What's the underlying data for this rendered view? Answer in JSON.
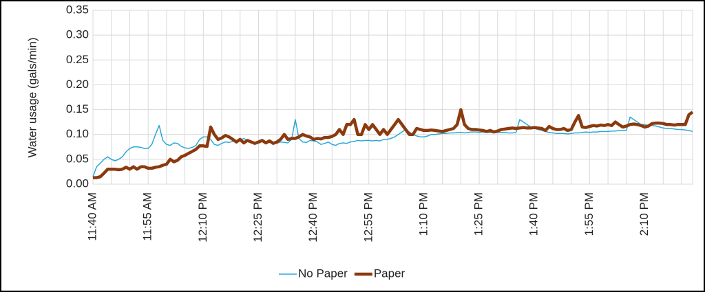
{
  "chart_data": {
    "type": "line",
    "ylabel": "Water usage (gals/min)",
    "categories": [
      "11:40 AM",
      null,
      null,
      null,
      null,
      null,
      null,
      null,
      null,
      null,
      null,
      null,
      null,
      null,
      null,
      "11:55 AM",
      null,
      null,
      null,
      null,
      null,
      null,
      null,
      null,
      null,
      null,
      null,
      null,
      null,
      null,
      "12:10 PM",
      null,
      null,
      null,
      null,
      null,
      null,
      null,
      null,
      null,
      null,
      null,
      null,
      null,
      null,
      "12:25 PM",
      null,
      null,
      null,
      null,
      null,
      null,
      null,
      null,
      null,
      null,
      null,
      null,
      null,
      null,
      "12:40 PM",
      null,
      null,
      null,
      null,
      null,
      null,
      null,
      null,
      null,
      null,
      null,
      null,
      null,
      null,
      "12:55 PM",
      null,
      null,
      null,
      null,
      null,
      null,
      null,
      null,
      null,
      null,
      null,
      null,
      null,
      null,
      "1:10 PM",
      null,
      null,
      null,
      null,
      null,
      null,
      null,
      null,
      null,
      null,
      null,
      null,
      null,
      null,
      "1:25 PM",
      null,
      null,
      null,
      null,
      null,
      null,
      null,
      null,
      null,
      null,
      null,
      null,
      null,
      null,
      "1:40 PM",
      null,
      null,
      null,
      null,
      null,
      null,
      null,
      null,
      null,
      null,
      null,
      null,
      null,
      null,
      "1:55 PM",
      null,
      null,
      null,
      null,
      null,
      null,
      null,
      null,
      null,
      null,
      null,
      null,
      null,
      null,
      "2:10 PM",
      null,
      null,
      null,
      null,
      null,
      null,
      null,
      null,
      null,
      null,
      null,
      null,
      null
    ],
    "series": [
      {
        "name": "No Paper",
        "color": "#2aa9d6",
        "width": 1.5,
        "values": [
          0.015,
          0.035,
          0.042,
          0.05,
          0.055,
          0.05,
          0.047,
          0.05,
          0.055,
          0.065,
          0.072,
          0.075,
          0.075,
          0.074,
          0.072,
          0.072,
          0.08,
          0.1,
          0.118,
          0.088,
          0.08,
          0.078,
          0.083,
          0.082,
          0.076,
          0.073,
          0.072,
          0.074,
          0.078,
          0.09,
          0.095,
          0.095,
          0.09,
          0.08,
          0.078,
          0.082,
          0.085,
          0.084,
          0.086,
          0.085,
          0.088,
          0.092,
          0.088,
          0.085,
          0.084,
          0.082,
          0.086,
          0.085,
          0.088,
          0.083,
          0.082,
          0.085,
          0.084,
          0.083,
          0.09,
          0.13,
          0.092,
          0.085,
          0.084,
          0.088,
          0.087,
          0.085,
          0.08,
          0.082,
          0.085,
          0.08,
          0.078,
          0.082,
          0.083,
          0.082,
          0.085,
          0.086,
          0.088,
          0.087,
          0.088,
          0.088,
          0.087,
          0.088,
          0.087,
          0.09,
          0.09,
          0.092,
          0.095,
          0.1,
          0.105,
          0.11,
          0.105,
          0.1,
          0.097,
          0.095,
          0.095,
          0.097,
          0.1,
          0.1,
          0.101,
          0.102,
          0.102,
          0.103,
          0.103,
          0.104,
          0.104,
          0.103,
          0.104,
          0.105,
          0.105,
          0.104,
          0.105,
          0.104,
          0.104,
          0.103,
          0.104,
          0.104,
          0.104,
          0.103,
          0.103,
          0.104,
          0.13,
          0.125,
          0.12,
          0.115,
          0.112,
          0.11,
          0.108,
          0.106,
          0.104,
          0.103,
          0.102,
          0.102,
          0.102,
          0.101,
          0.102,
          0.103,
          0.103,
          0.104,
          0.105,
          0.104,
          0.105,
          0.105,
          0.106,
          0.106,
          0.106,
          0.107,
          0.107,
          0.108,
          0.108,
          0.108,
          0.135,
          0.13,
          0.125,
          0.12,
          0.12,
          0.118,
          0.118,
          0.117,
          0.115,
          0.113,
          0.112,
          0.112,
          0.111,
          0.11,
          0.11,
          0.109,
          0.108,
          0.106
        ]
      },
      {
        "name": "Paper",
        "color": "#8b3a0e",
        "width": 4.5,
        "values": [
          0.013,
          0.013,
          0.015,
          0.022,
          0.03,
          0.03,
          0.03,
          0.029,
          0.03,
          0.034,
          0.03,
          0.035,
          0.03,
          0.035,
          0.035,
          0.032,
          0.032,
          0.034,
          0.035,
          0.038,
          0.04,
          0.05,
          0.045,
          0.048,
          0.055,
          0.058,
          0.062,
          0.066,
          0.07,
          0.077,
          0.077,
          0.076,
          0.115,
          0.1,
          0.09,
          0.093,
          0.098,
          0.095,
          0.09,
          0.085,
          0.09,
          0.083,
          0.088,
          0.085,
          0.082,
          0.085,
          0.088,
          0.083,
          0.087,
          0.082,
          0.085,
          0.09,
          0.1,
          0.09,
          0.092,
          0.092,
          0.095,
          0.1,
          0.097,
          0.095,
          0.09,
          0.092,
          0.091,
          0.094,
          0.094,
          0.096,
          0.1,
          0.11,
          0.1,
          0.12,
          0.12,
          0.13,
          0.1,
          0.1,
          0.12,
          0.11,
          0.12,
          0.11,
          0.1,
          0.11,
          0.1,
          0.11,
          0.12,
          0.13,
          0.12,
          0.11,
          0.1,
          0.1,
          0.112,
          0.11,
          0.108,
          0.108,
          0.109,
          0.108,
          0.107,
          0.106,
          0.108,
          0.11,
          0.112,
          0.12,
          0.15,
          0.12,
          0.112,
          0.11,
          0.11,
          0.109,
          0.108,
          0.106,
          0.108,
          0.105,
          0.107,
          0.11,
          0.111,
          0.112,
          0.113,
          0.112,
          0.113,
          0.114,
          0.113,
          0.113,
          0.114,
          0.113,
          0.112,
          0.108,
          0.116,
          0.112,
          0.11,
          0.11,
          0.112,
          0.108,
          0.11,
          0.125,
          0.138,
          0.115,
          0.114,
          0.116,
          0.118,
          0.117,
          0.119,
          0.118,
          0.12,
          0.118,
          0.125,
          0.12,
          0.115,
          0.117,
          0.12,
          0.121,
          0.12,
          0.118,
          0.115,
          0.117,
          0.122,
          0.123,
          0.123,
          0.122,
          0.12,
          0.12,
          0.119,
          0.12,
          0.12,
          0.12,
          0.14,
          0.145
        ]
      }
    ],
    "ylim": [
      0,
      0.35
    ],
    "yticks": [
      {
        "value": 0,
        "label": "0.00"
      },
      0.05,
      {
        "value": 0.1,
        "label": "0.10"
      },
      0.15,
      {
        "value": 0.2,
        "label": "0.20"
      },
      0.25,
      {
        "value": 0.3,
        "label": "0.30"
      },
      0.35
    ],
    "grid": true,
    "legend": "bottom"
  }
}
